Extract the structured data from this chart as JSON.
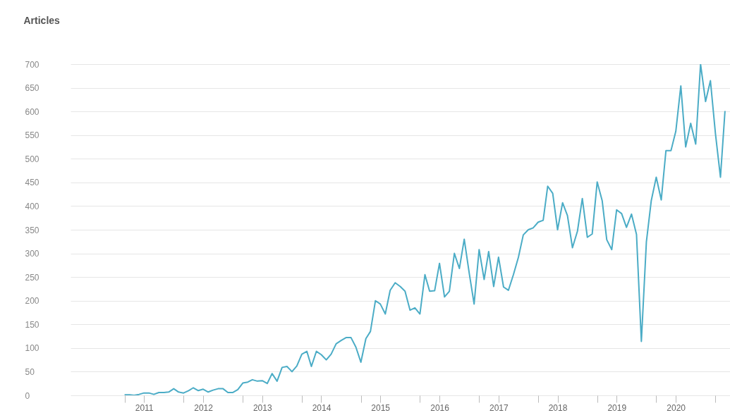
{
  "chart_data": {
    "type": "line",
    "ylabel": "Articles",
    "x": [
      "2011-01",
      "2011-02",
      "2011-03",
      "2011-04",
      "2011-05",
      "2011-06",
      "2011-07",
      "2011-08",
      "2011-09",
      "2011-10",
      "2011-11",
      "2011-12",
      "2012-01",
      "2012-02",
      "2012-03",
      "2012-04",
      "2012-05",
      "2012-06",
      "2012-07",
      "2012-08",
      "2012-09",
      "2012-10",
      "2012-11",
      "2012-12",
      "2013-01",
      "2013-02",
      "2013-03",
      "2013-04",
      "2013-05",
      "2013-06",
      "2013-07",
      "2013-08",
      "2013-09",
      "2013-10",
      "2013-11",
      "2013-12",
      "2014-01",
      "2014-02",
      "2014-03",
      "2014-04",
      "2014-05",
      "2014-06",
      "2014-07",
      "2014-08",
      "2014-09",
      "2014-10",
      "2014-11",
      "2014-12",
      "2015-01",
      "2015-02",
      "2015-03",
      "2015-04",
      "2015-05",
      "2015-06",
      "2015-07",
      "2015-08",
      "2015-09",
      "2015-10",
      "2015-11",
      "2015-12",
      "2016-01",
      "2016-02",
      "2016-03",
      "2016-04",
      "2016-05",
      "2016-06",
      "2016-07",
      "2016-08",
      "2016-09",
      "2016-10",
      "2016-11",
      "2016-12",
      "2017-01",
      "2017-02",
      "2017-03",
      "2017-04",
      "2017-05",
      "2017-06",
      "2017-07",
      "2017-08",
      "2017-09",
      "2017-10",
      "2017-11",
      "2017-12",
      "2018-01",
      "2018-02",
      "2018-03",
      "2018-04",
      "2018-05",
      "2018-06",
      "2018-07",
      "2018-08",
      "2018-09",
      "2018-10",
      "2018-11",
      "2018-12",
      "2019-01",
      "2019-02",
      "2019-03",
      "2019-04",
      "2019-05",
      "2019-06",
      "2019-07",
      "2019-08",
      "2019-09",
      "2019-10",
      "2019-11",
      "2019-12",
      "2020-01",
      "2020-02",
      "2020-03",
      "2020-04",
      "2020-05",
      "2020-06",
      "2020-07",
      "2020-08",
      "2020-09",
      "2020-10",
      "2020-11",
      "2020-12",
      "2021-01",
      "2021-02",
      "2021-03"
    ],
    "series": [
      {
        "color": "#4bacc6",
        "values": [
          1,
          1,
          0,
          2,
          5,
          5,
          2,
          6,
          6,
          7,
          14,
          7,
          5,
          10,
          16,
          10,
          13,
          7,
          11,
          14,
          14,
          6,
          6,
          12,
          26,
          28,
          33,
          30,
          31,
          25,
          46,
          30,
          59,
          61,
          50,
          62,
          87,
          93,
          61,
          93,
          86,
          75,
          87,
          109,
          116,
          122,
          122,
          102,
          70,
          120,
          135,
          200,
          193,
          172,
          222,
          238,
          230,
          220,
          180,
          185,
          172,
          255,
          220,
          221,
          279,
          208,
          220,
          300,
          268,
          330,
          258,
          193,
          308,
          245,
          304,
          230,
          292,
          229,
          222,
          255,
          292,
          339,
          350,
          354,
          366,
          370,
          442,
          427,
          350,
          407,
          380,
          312,
          347,
          416,
          334,
          341,
          451,
          411,
          329,
          308,
          392,
          384,
          355,
          383,
          340,
          114,
          324,
          411,
          461,
          413,
          517,
          517,
          558,
          654,
          525,
          575,
          531,
          700,
          621,
          665,
          553,
          461,
          601
        ]
      }
    ],
    "xlim": [
      "2010-02",
      "2021-04"
    ],
    "xticks": [
      {
        "value": "2011-01",
        "label": null
      },
      {
        "value": "2011-05",
        "label": "2011"
      },
      {
        "value": "2012-01",
        "label": null
      },
      {
        "value": "2012-05",
        "label": "2012"
      },
      {
        "value": "2013-01",
        "label": null
      },
      {
        "value": "2013-05",
        "label": "2013"
      },
      {
        "value": "2014-01",
        "label": null
      },
      {
        "value": "2014-05",
        "label": "2014"
      },
      {
        "value": "2015-01",
        "label": null
      },
      {
        "value": "2015-05",
        "label": "2015"
      },
      {
        "value": "2016-01",
        "label": null
      },
      {
        "value": "2016-05",
        "label": "2016"
      },
      {
        "value": "2017-01",
        "label": null
      },
      {
        "value": "2017-05",
        "label": "2017"
      },
      {
        "value": "2018-01",
        "label": null
      },
      {
        "value": "2018-05",
        "label": "2018"
      },
      {
        "value": "2019-01",
        "label": null
      },
      {
        "value": "2019-05",
        "label": "2019"
      },
      {
        "value": "2020-01",
        "label": null
      },
      {
        "value": "2020-05",
        "label": "2020"
      },
      {
        "value": "2021-01",
        "label": null
      }
    ],
    "ylim": [
      0,
      700
    ],
    "yticks": [
      0,
      50,
      100,
      150,
      200,
      250,
      300,
      350,
      400,
      450,
      500,
      550,
      600,
      650,
      700
    ],
    "grid": "y",
    "legend": false,
    "marker": "none",
    "line_style": "solid"
  }
}
